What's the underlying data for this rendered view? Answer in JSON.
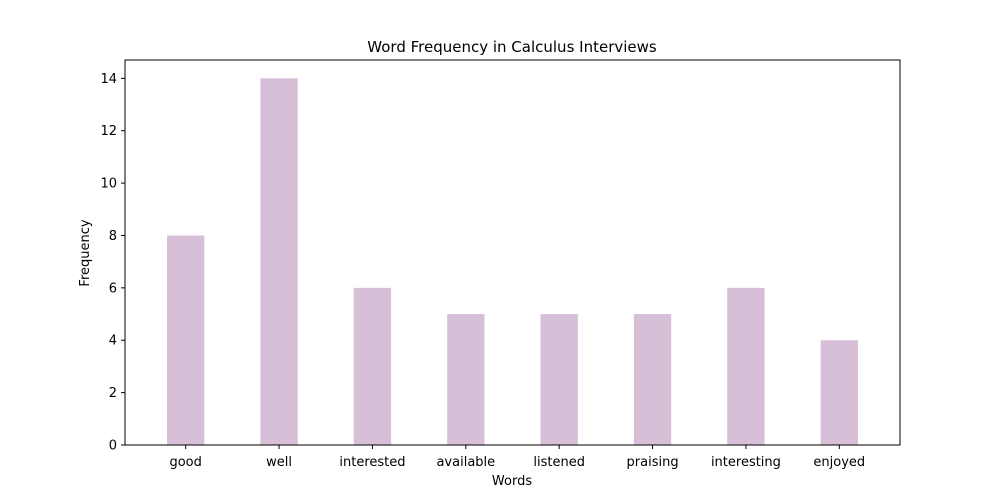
{
  "chart_data": {
    "type": "bar",
    "title": "Word Frequency in Calculus Interviews",
    "xlabel": "Words",
    "ylabel": "Frequency",
    "categories": [
      "good",
      "well",
      "interested",
      "available",
      "listened",
      "praising",
      "interesting",
      "enjoyed"
    ],
    "values": [
      8,
      14,
      6,
      5,
      5,
      5,
      6,
      4
    ],
    "ylim": [
      0,
      14.7
    ],
    "yticks": [
      0,
      2,
      4,
      6,
      8,
      10,
      12,
      14
    ],
    "bar_color": "#d8bfd8",
    "grid": false,
    "legend": "none"
  }
}
